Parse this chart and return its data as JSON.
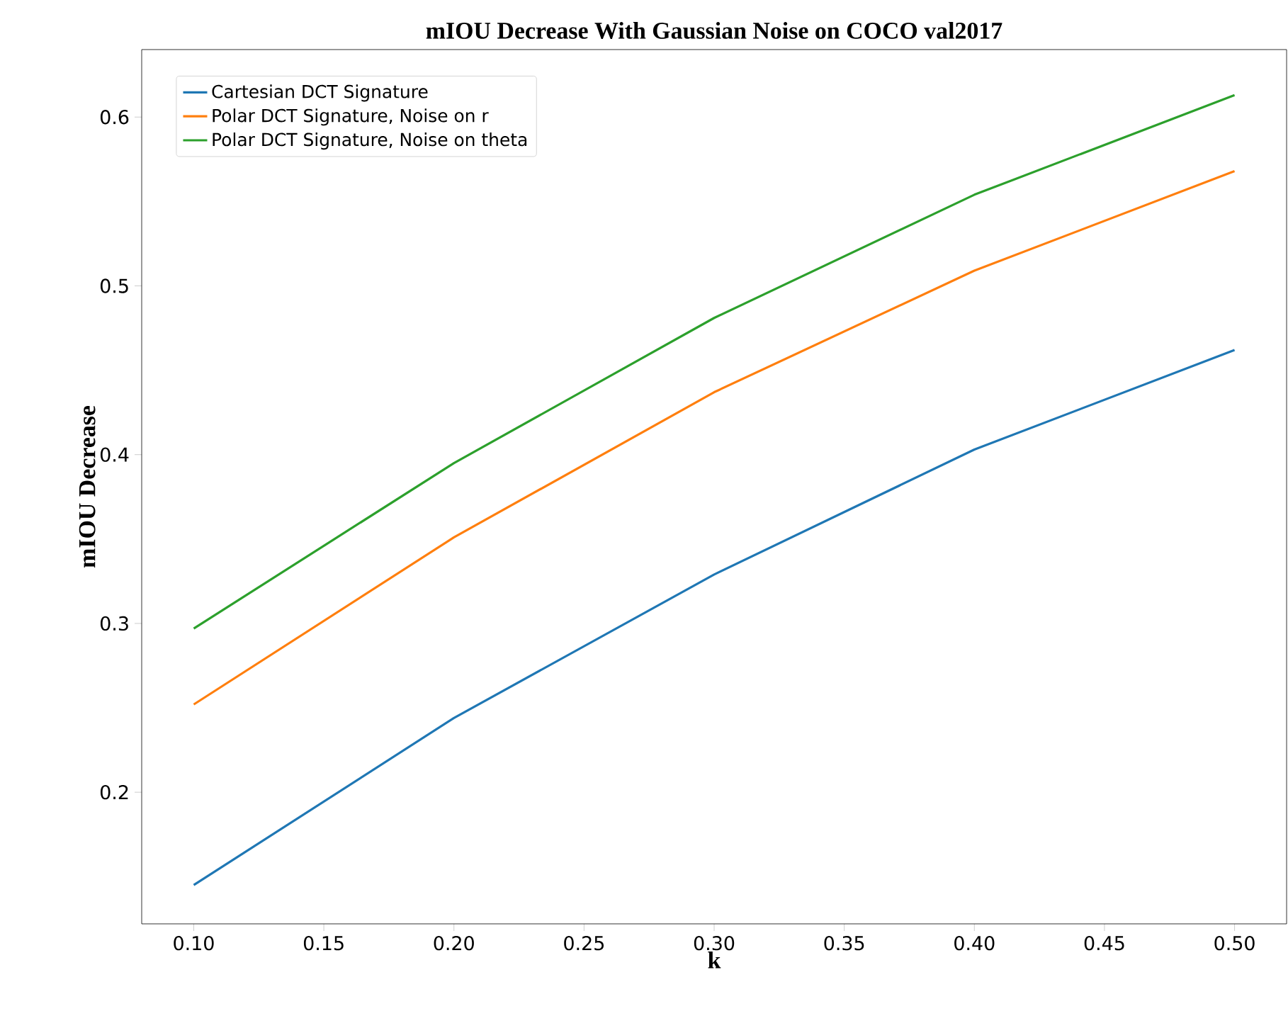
{
  "chart_data": {
    "type": "line",
    "title": "mIOU Decrease With Gaussian Noise on COCO val2017",
    "xlabel": "k",
    "ylabel": "mIOU Decrease",
    "x": [
      0.1,
      0.2,
      0.3,
      0.4,
      0.5
    ],
    "series": [
      {
        "name": "Cartesian DCT Signature",
        "color": "#1f77b4",
        "values": [
          0.145,
          0.244,
          0.329,
          0.403,
          0.462
        ]
      },
      {
        "name": "Polar DCT Signature, Noise on r",
        "color": "#ff7f0e",
        "values": [
          0.252,
          0.351,
          0.437,
          0.509,
          0.568
        ]
      },
      {
        "name": "Polar DCT Signature, Noise on theta",
        "color": "#2ca02c",
        "values": [
          0.297,
          0.395,
          0.481,
          0.554,
          0.613
        ]
      }
    ],
    "xlim": [
      0.08,
      0.52
    ],
    "ylim": [
      0.122,
      0.64
    ],
    "xticks": [
      {
        "value": 0.1,
        "label": "0.10"
      },
      {
        "value": 0.15,
        "label": "0.15"
      },
      {
        "value": 0.2,
        "label": "0.20"
      },
      {
        "value": 0.25,
        "label": "0.25"
      },
      {
        "value": 0.3,
        "label": "0.30"
      },
      {
        "value": 0.35,
        "label": "0.35"
      },
      {
        "value": 0.4,
        "label": "0.40"
      },
      {
        "value": 0.45,
        "label": "0.45"
      },
      {
        "value": 0.5,
        "label": "0.50"
      }
    ],
    "yticks": [
      0.2,
      0.3,
      0.4,
      0.5,
      0.6
    ],
    "grid": false,
    "legend": "top left",
    "marker": "none",
    "line_style": "solid"
  }
}
